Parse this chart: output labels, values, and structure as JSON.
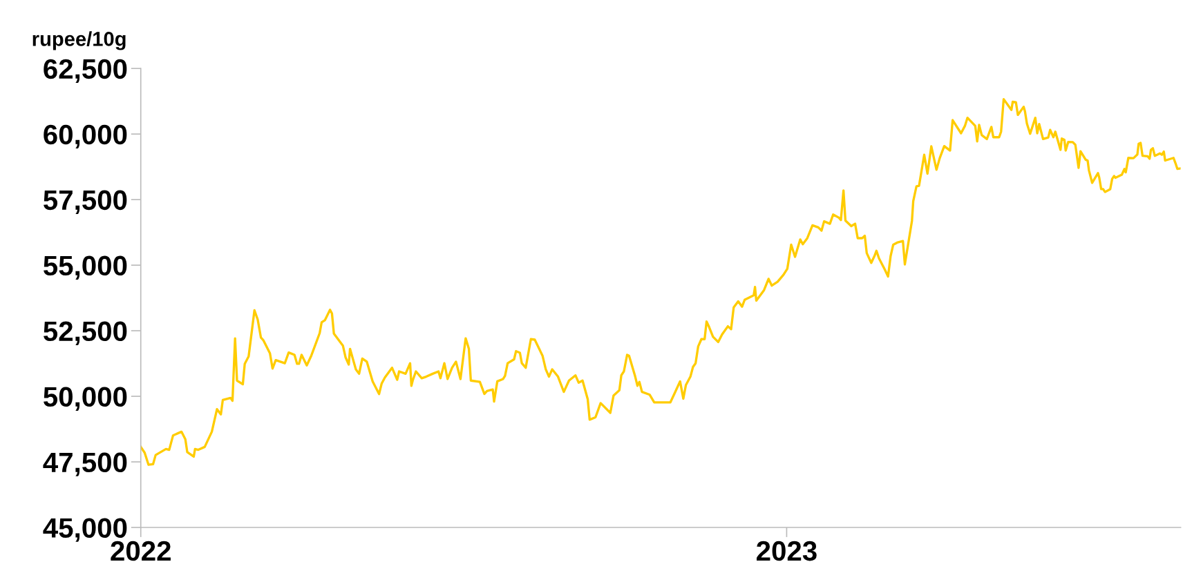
{
  "chart_data": {
    "type": "line",
    "ylabel": "rupee/10g",
    "xlim": [
      2022,
      2023.61
    ],
    "xticks": [
      2022,
      2023
    ],
    "ylim": [
      45000,
      62500
    ],
    "yticks": [
      {
        "value": 45000,
        "label": "45,000"
      },
      {
        "value": 47500,
        "label": "47,500"
      },
      {
        "value": 50000,
        "label": "50,000"
      },
      {
        "value": 52500,
        "label": "52,500"
      },
      {
        "value": 55000,
        "label": "55,000"
      },
      {
        "value": 57500,
        "label": "57,500"
      },
      {
        "value": 60000,
        "label": "60,000"
      },
      {
        "value": 62500,
        "label": "62,500"
      }
    ],
    "grid": false,
    "legend": false,
    "marker": "none",
    "line_style": "solid",
    "series": [
      {
        "color": "#ffcc00",
        "x": [
          2022.0,
          2022.006,
          2022.012,
          2022.019,
          2022.023,
          2022.039,
          2022.044,
          2022.05,
          2022.063,
          2022.069,
          2022.072,
          2022.082,
          2022.084,
          2022.089,
          2022.099,
          2022.11,
          2022.118,
          2022.124,
          2022.127,
          2022.139,
          2022.142,
          2022.146,
          2022.149,
          2022.158,
          2022.161,
          2022.167,
          2022.176,
          2022.181,
          2022.186,
          2022.19,
          2022.2,
          2022.204,
          2022.209,
          2022.223,
          2022.229,
          2022.238,
          2022.242,
          2022.245,
          2022.249,
          2022.257,
          2022.264,
          2022.277,
          2022.28,
          2022.285,
          2022.293,
          2022.296,
          2022.299,
          2022.313,
          2022.317,
          2022.322,
          2022.324,
          2022.333,
          2022.338,
          2022.343,
          2022.35,
          2022.359,
          2022.369,
          2022.373,
          2022.378,
          2022.389,
          2022.397,
          2022.4,
          2022.41,
          2022.417,
          2022.419,
          2022.421,
          2022.426,
          2022.435,
          2022.442,
          2022.452,
          2022.461,
          2022.464,
          2022.47,
          2022.475,
          2022.482,
          2022.488,
          2022.495,
          2022.503,
          2022.508,
          2022.511,
          2022.525,
          2022.532,
          2022.536,
          2022.545,
          2022.547,
          2022.552,
          2022.561,
          2022.564,
          2022.568,
          2022.578,
          2022.581,
          2022.587,
          2022.59,
          2022.596,
          2022.604,
          2022.61,
          2022.622,
          2022.627,
          2022.632,
          2022.637,
          2022.646,
          2022.655,
          2022.663,
          2022.673,
          2022.678,
          2022.684,
          2022.692,
          2022.695,
          2022.704,
          2022.712,
          2022.727,
          2022.732,
          2022.741,
          2022.744,
          2022.748,
          2022.753,
          2022.756,
          2022.765,
          2022.769,
          2022.772,
          2022.776,
          2022.788,
          2022.795,
          2022.82,
          2022.827,
          2022.835,
          2022.84,
          2022.844,
          2022.851,
          2022.855,
          2022.859,
          2022.863,
          2022.868,
          2022.873,
          2022.876,
          2022.88,
          2022.886,
          2022.894,
          2022.9,
          2022.909,
          2022.914,
          2022.918,
          2022.925,
          2022.931,
          2022.935,
          2022.949,
          2022.951,
          2022.953,
          2022.965,
          2022.972,
          2022.977,
          2022.986,
          2022.995,
          2023.001,
          2023.007,
          2023.013,
          2023.021,
          2023.025,
          2023.032,
          2023.04,
          2023.049,
          2023.054,
          2023.058,
          2023.067,
          2023.072,
          2023.081,
          2023.084,
          2023.088,
          2023.091,
          2023.1,
          2023.106,
          2023.11,
          2023.117,
          2023.121,
          2023.124,
          2023.131,
          2023.136,
          2023.139,
          2023.143,
          2023.152,
          2023.157,
          2023.161,
          2023.165,
          2023.171,
          2023.18,
          2023.183,
          2023.194,
          2023.196,
          2023.201,
          2023.205,
          2023.213,
          2023.218,
          2023.224,
          2023.232,
          2023.237,
          2023.244,
          2023.253,
          2023.257,
          2023.27,
          2023.276,
          2023.28,
          2023.292,
          2023.295,
          2023.298,
          2023.302,
          2023.31,
          2023.317,
          2023.32,
          2023.329,
          2023.332,
          2023.336,
          2023.348,
          2023.35,
          2023.355,
          2023.358,
          2023.367,
          2023.369,
          2023.372,
          2023.377,
          2023.385,
          2023.388,
          2023.391,
          2023.397,
          2023.405,
          2023.408,
          2023.413,
          2023.416,
          2023.424,
          2023.426,
          2023.43,
          2023.432,
          2023.436,
          2023.443,
          2023.447,
          2023.452,
          2023.455,
          2023.463,
          2023.466,
          2023.468,
          2023.473,
          2023.482,
          2023.484,
          2023.487,
          2023.49,
          2023.493,
          2023.501,
          2023.504,
          2023.507,
          2023.509,
          2023.519,
          2023.523,
          2023.525,
          2023.529,
          2023.537,
          2023.543,
          2023.545,
          2023.548,
          2023.551,
          2023.559,
          2023.562,
          2023.564,
          2023.567,
          2023.57,
          2023.578,
          2023.581,
          2023.584,
          2023.586,
          2023.599,
          2023.602,
          2023.605,
          2023.61
        ],
        "values": [
          48070,
          47850,
          47390,
          47410,
          47760,
          47990,
          47960,
          48510,
          48650,
          48360,
          47870,
          47700,
          47990,
          47960,
          48070,
          48650,
          49510,
          49310,
          49860,
          49940,
          49830,
          52210,
          50600,
          50460,
          51240,
          51520,
          53280,
          52930,
          52240,
          52130,
          51640,
          51060,
          51380,
          51260,
          51670,
          51580,
          51240,
          51240,
          51580,
          51180,
          51550,
          52410,
          52820,
          52900,
          53300,
          53160,
          52390,
          51930,
          51490,
          51210,
          51810,
          51030,
          50860,
          51440,
          51320,
          50570,
          50090,
          50490,
          50720,
          51090,
          50630,
          50950,
          50860,
          51260,
          50400,
          50600,
          50950,
          50690,
          50750,
          50860,
          50950,
          50690,
          51260,
          50660,
          51090,
          51320,
          50660,
          52210,
          51810,
          50600,
          50550,
          50090,
          50200,
          50260,
          49800,
          50570,
          50660,
          50780,
          51260,
          51410,
          51720,
          51660,
          51260,
          51090,
          52180,
          52160,
          51550,
          51030,
          50750,
          51030,
          50750,
          50170,
          50600,
          50800,
          50520,
          50600,
          49890,
          49110,
          49200,
          49740,
          49370,
          50030,
          50230,
          50800,
          50950,
          51580,
          51550,
          50800,
          50400,
          50550,
          50170,
          50060,
          49770,
          49770,
          50140,
          50570,
          49910,
          50430,
          50750,
          51120,
          51260,
          51900,
          52180,
          52180,
          52850,
          52640,
          52270,
          52070,
          52360,
          52670,
          52560,
          53390,
          53620,
          53420,
          53680,
          53850,
          54170,
          53650,
          54050,
          54480,
          54220,
          54370,
          54630,
          54860,
          55780,
          55320,
          55980,
          55800,
          56030,
          56520,
          56440,
          56320,
          56670,
          56580,
          56930,
          56810,
          56720,
          57850,
          56700,
          56490,
          56580,
          56030,
          56030,
          56120,
          55460,
          55090,
          55350,
          55550,
          55260,
          54830,
          54570,
          55350,
          55780,
          55860,
          55920,
          55030,
          56690,
          57440,
          58010,
          58030,
          59210,
          58490,
          59530,
          58640,
          59080,
          59540,
          59370,
          60530,
          60030,
          60310,
          60620,
          60310,
          59720,
          60350,
          59960,
          59810,
          60270,
          59880,
          59880,
          60090,
          61330,
          60920,
          61230,
          61210,
          60730,
          61040,
          60860,
          60400,
          60010,
          60620,
          60030,
          60380,
          59810,
          59870,
          60160,
          59880,
          60090,
          59400,
          59830,
          59780,
          59370,
          59700,
          59690,
          59590,
          58710,
          59340,
          59020,
          58990,
          58620,
          58140,
          58510,
          58340,
          57900,
          57900,
          57790,
          57900,
          58290,
          58400,
          58330,
          58450,
          58670,
          58540,
          59090,
          59080,
          59220,
          59630,
          59660,
          59170,
          59150,
          59060,
          59400,
          59460,
          59170,
          59260,
          59210,
          59330,
          58990,
          59090,
          58890,
          58670,
          58690
        ]
      }
    ]
  }
}
